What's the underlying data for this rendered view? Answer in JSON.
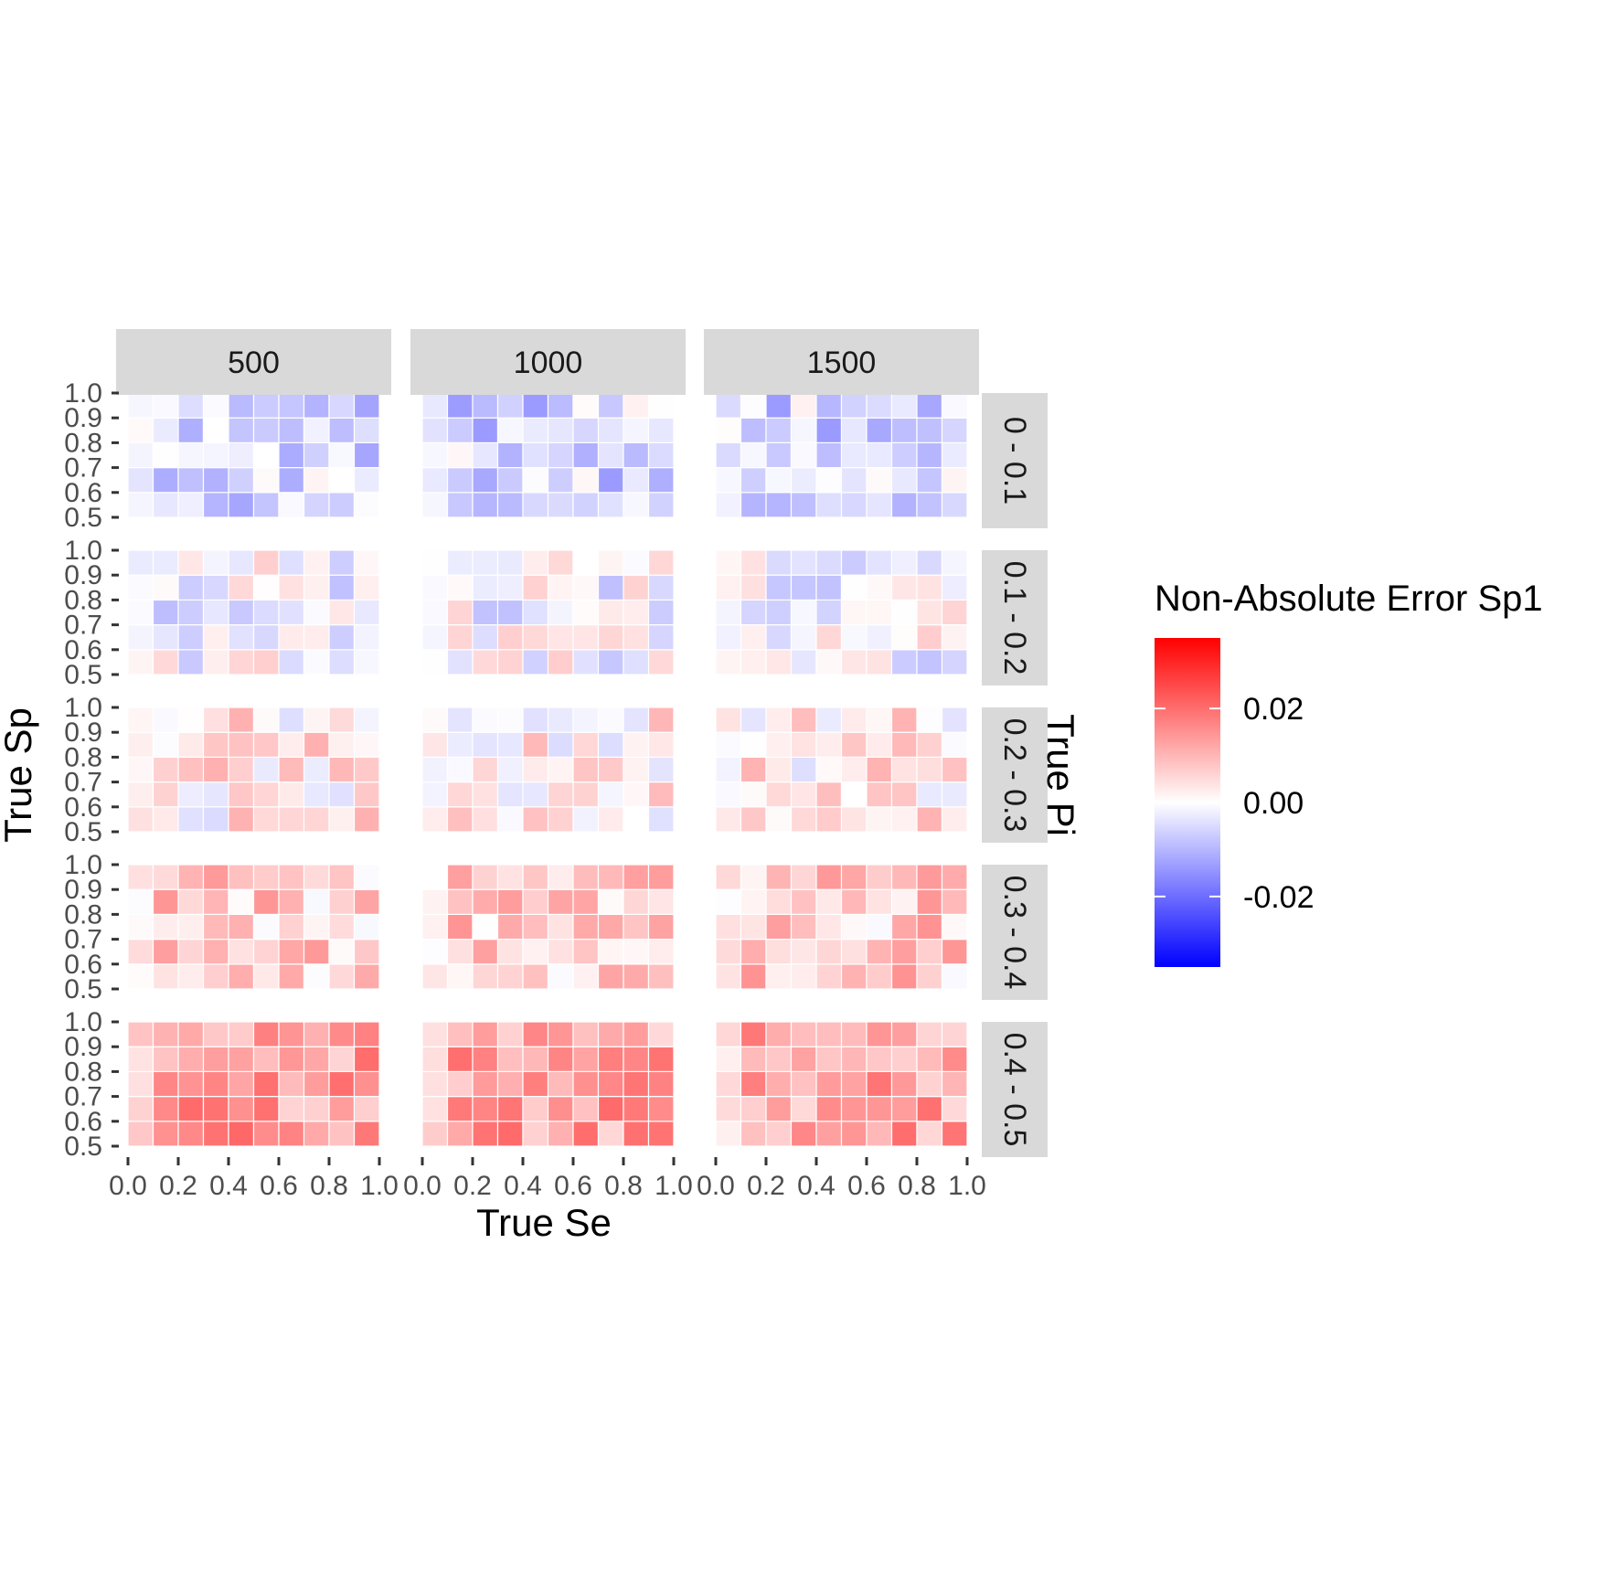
{
  "chart_data": {
    "type": "heatmap",
    "xlabel": "True Se",
    "ylabel": "True Sp",
    "facet_col_values": [
      "500",
      "1000",
      "1500"
    ],
    "facet_row_title": "True Pi",
    "facet_row_values": [
      "0 - 0.1",
      "0.1 - 0.2",
      "0.2 - 0.3",
      "0.3 - 0.4",
      "0.4 - 0.5"
    ],
    "x_tick_labels": [
      "0.0",
      "0.2",
      "0.4",
      "0.6",
      "0.8",
      "1.0"
    ],
    "y_tick_labels": [
      "0.5",
      "0.6",
      "0.7",
      "0.8",
      "0.9",
      "1.0"
    ],
    "x_values": [
      0.05,
      0.15,
      0.25,
      0.35,
      0.45,
      0.55,
      0.65,
      0.75,
      0.85,
      0.95
    ],
    "y_values": [
      0.55,
      0.65,
      0.75,
      0.85,
      0.95
    ],
    "xlim": [
      0,
      1
    ],
    "ylim": [
      0.5,
      1
    ],
    "grid": false,
    "legend": {
      "title": "Non-Absolute Error Sp1",
      "position": "right",
      "labels": [
        "0.02",
        "0.00",
        "-0.02"
      ],
      "label_values": [
        0.02,
        0.0,
        -0.02
      ],
      "range": [
        -0.035,
        0.035
      ],
      "low_color": "#0000ff",
      "mid_color": "#ffffff",
      "high_color": "#ff0000"
    },
    "panel_rows_mean_error": [
      -0.006,
      -0.001,
      0.003,
      0.007,
      0.013
    ],
    "panel_rows_note_order": "rows top to bottom; values in each panel listed y from 1.0 down to 0.5, x from 0.0 to 1.0"
  }
}
